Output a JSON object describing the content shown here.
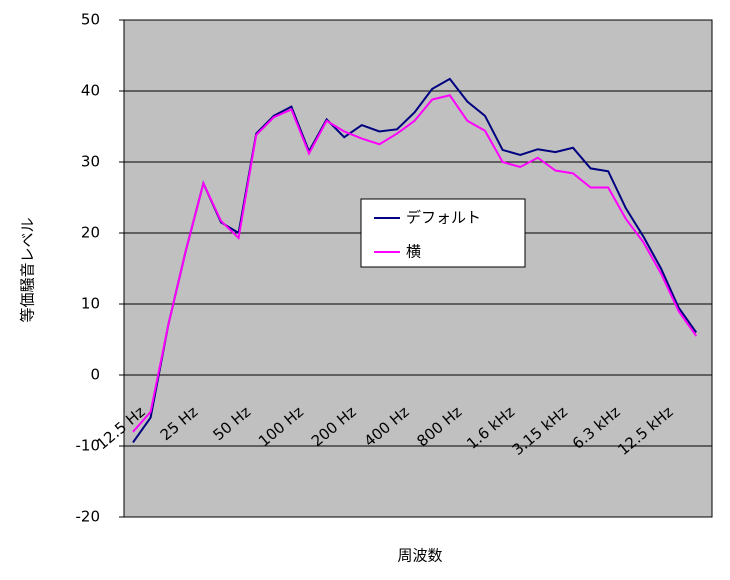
{
  "chart_data": {
    "type": "line",
    "x_label": "周波数",
    "y_label": "等価騒音レベル",
    "categories": [
      "12.5 Hz",
      null,
      null,
      "25 Hz",
      null,
      null,
      "50 Hz",
      null,
      null,
      "100 Hz",
      null,
      null,
      "200 Hz",
      null,
      null,
      "400 Hz",
      null,
      null,
      "800 Hz",
      null,
      null,
      "1.6 kHz",
      null,
      null,
      "3.15 kHz",
      null,
      null,
      "6.3 kHz",
      null,
      null,
      "12.5 kHz",
      null,
      null
    ],
    "series": [
      {
        "name": "デフォルト",
        "color": "#000080",
        "values": [
          -9.5,
          -6,
          7,
          17.5,
          27,
          21.5,
          20,
          34,
          36.5,
          37.8,
          31.5,
          36,
          33.5,
          35.2,
          34.3,
          34.6,
          37,
          40.3,
          41.7,
          38.5,
          36.5,
          31.7,
          31,
          31.8,
          31.4,
          32,
          29.1,
          28.7,
          23.5,
          19.5,
          15,
          9.5,
          6
        ]
      },
      {
        "name": "横",
        "color": "#ff00ff",
        "values": [
          -8,
          -5.2,
          7,
          17.5,
          27,
          21.7,
          19.3,
          33.8,
          36.3,
          37.4,
          31.2,
          35.8,
          34.3,
          33.3,
          32.5,
          34,
          35.8,
          38.8,
          39.4,
          35.8,
          34.4,
          30,
          29.3,
          30.6,
          28.8,
          28.4,
          26.4,
          26.4,
          22,
          18.7,
          14.3,
          9,
          5.5
        ]
      }
    ],
    "ylim": [
      -20,
      50
    ],
    "yticks": [
      -20,
      -10,
      0,
      10,
      20,
      30,
      40,
      50
    ],
    "grid": true,
    "background": "#c0c0c0"
  }
}
